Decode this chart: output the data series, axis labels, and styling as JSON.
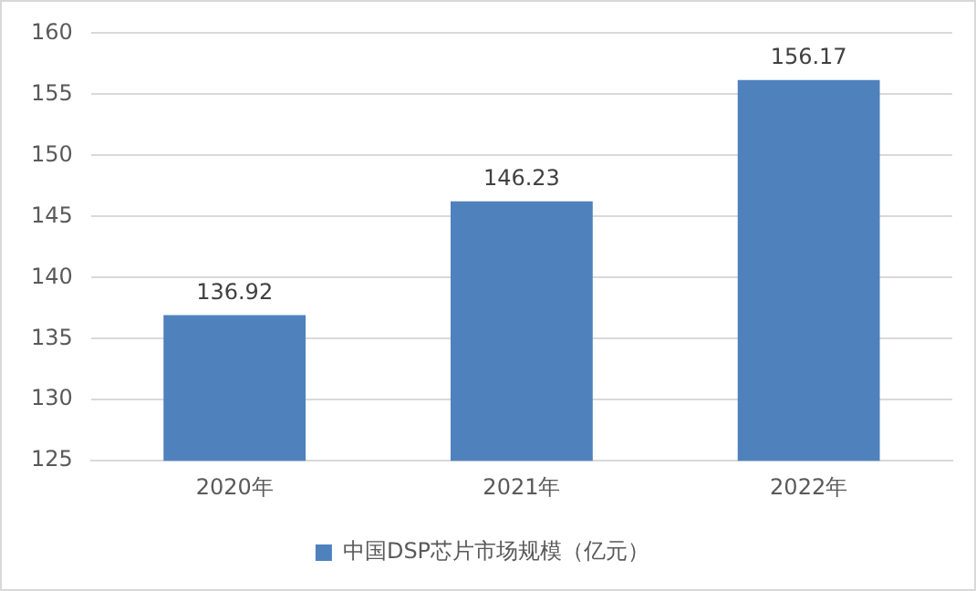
{
  "chart_data": {
    "type": "bar",
    "categories": [
      "2020年",
      "2021年",
      "2022年"
    ],
    "series": [
      {
        "name": "中国DSP芯片市场规模（亿元）",
        "color": "#4f81bd",
        "values": [
          136.92,
          146.23,
          156.17
        ]
      }
    ],
    "ylim": [
      125,
      160
    ],
    "yticks": [
      125,
      130,
      135,
      140,
      145,
      150,
      155,
      160
    ],
    "grid": "y",
    "legend": "bottom",
    "data_labels": true
  }
}
